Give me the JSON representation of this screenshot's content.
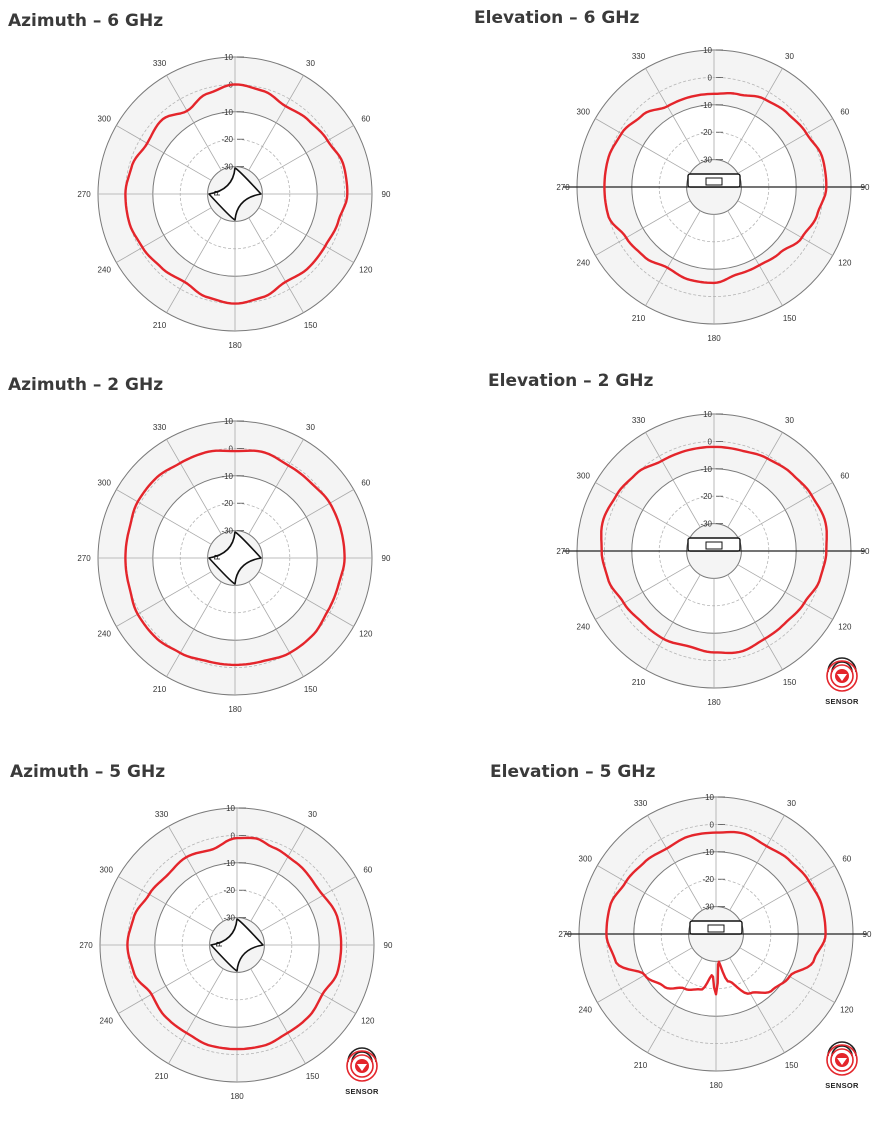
{
  "chart_data": [
    {
      "type": "polar",
      "title": "Azimuth – 6 GHz",
      "plane": "azimuth",
      "angle_ticks": [
        "30",
        "60",
        "90",
        "120",
        "150",
        "180",
        "210",
        "240",
        "270",
        "300",
        "330"
      ],
      "radial_ticks": [
        "10",
        "0",
        "-10",
        "-20",
        "-30"
      ],
      "rlim": [
        -40,
        10
      ],
      "device_label": "R",
      "series": [
        {
          "color": "#e4252b",
          "points": [
            [
              0,
              0
            ],
            [
              15,
              -1
            ],
            [
              30,
              -3
            ],
            [
              45,
              -2
            ],
            [
              60,
              -1
            ],
            [
              75,
              1
            ],
            [
              90,
              1
            ],
            [
              105,
              -1
            ],
            [
              120,
              -2
            ],
            [
              135,
              -2
            ],
            [
              150,
              -3
            ],
            [
              165,
              -1
            ],
            [
              180,
              0
            ],
            [
              195,
              -1
            ],
            [
              210,
              -3
            ],
            [
              225,
              -2
            ],
            [
              240,
              -1
            ],
            [
              255,
              0
            ],
            [
              270,
              0
            ],
            [
              285,
              -1
            ],
            [
              300,
              -3
            ],
            [
              315,
              -2
            ],
            [
              330,
              -5
            ],
            [
              345,
              -2
            ]
          ]
        }
      ]
    },
    {
      "type": "polar",
      "title": "Elevation – 6 GHz",
      "plane": "elevation",
      "angle_ticks": [
        "30",
        "60",
        "90",
        "120",
        "150",
        "180",
        "210",
        "240",
        "270",
        "300",
        "330"
      ],
      "radial_ticks": [
        "10",
        "0",
        "-10",
        "-20",
        "-30"
      ],
      "rlim": [
        -40,
        10
      ],
      "series": [
        {
          "color": "#e4252b",
          "points": [
            [
              0,
              -6
            ],
            [
              15,
              -5
            ],
            [
              30,
              -3
            ],
            [
              45,
              -2
            ],
            [
              60,
              -1
            ],
            [
              75,
              1
            ],
            [
              90,
              1
            ],
            [
              105,
              -1
            ],
            [
              120,
              -3
            ],
            [
              135,
              -6
            ],
            [
              150,
              -7
            ],
            [
              165,
              -7
            ],
            [
              180,
              -5
            ],
            [
              195,
              -5
            ],
            [
              210,
              -6
            ],
            [
              225,
              -4
            ],
            [
              240,
              -3
            ],
            [
              255,
              0
            ],
            [
              270,
              0
            ],
            [
              285,
              0
            ],
            [
              300,
              -1
            ],
            [
              315,
              -3
            ],
            [
              330,
              -6
            ],
            [
              345,
              -6
            ]
          ]
        }
      ]
    },
    {
      "type": "polar",
      "title": "Azimuth – 2 GHz",
      "plane": "azimuth",
      "angle_ticks": [
        "30",
        "60",
        "90",
        "120",
        "150",
        "180",
        "210",
        "240",
        "270",
        "300",
        "330"
      ],
      "radial_ticks": [
        "10",
        "0",
        "-10",
        "-20",
        "-30"
      ],
      "rlim": [
        -40,
        10
      ],
      "device_label": "R",
      "series": [
        {
          "color": "#e4252b",
          "points": [
            [
              0,
              -1
            ],
            [
              15,
              0
            ],
            [
              30,
              -1
            ],
            [
              45,
              -1
            ],
            [
              60,
              0
            ],
            [
              75,
              0
            ],
            [
              90,
              0
            ],
            [
              105,
              -1
            ],
            [
              120,
              -1
            ],
            [
              135,
              0
            ],
            [
              150,
              0
            ],
            [
              165,
              -1
            ],
            [
              180,
              -1
            ],
            [
              195,
              -1
            ],
            [
              210,
              0
            ],
            [
              225,
              1
            ],
            [
              240,
              1
            ],
            [
              255,
              0
            ],
            [
              270,
              0
            ],
            [
              285,
              0
            ],
            [
              300,
              1
            ],
            [
              315,
              1
            ],
            [
              330,
              0
            ],
            [
              345,
              0
            ]
          ]
        }
      ]
    },
    {
      "type": "polar",
      "title": "Elevation – 2 GHz",
      "plane": "elevation",
      "angle_ticks": [
        "30",
        "60",
        "90",
        "120",
        "150",
        "180",
        "210",
        "240",
        "270",
        "300",
        "330"
      ],
      "radial_ticks": [
        "10",
        "0",
        "-10",
        "-20",
        "-30"
      ],
      "rlim": [
        -40,
        10
      ],
      "sensor_label": "SENSOR",
      "series": [
        {
          "color": "#e4252b",
          "points": [
            [
              0,
              -2
            ],
            [
              15,
              -2
            ],
            [
              30,
              -1
            ],
            [
              45,
              0
            ],
            [
              60,
              1
            ],
            [
              75,
              2
            ],
            [
              90,
              1
            ],
            [
              105,
              0
            ],
            [
              120,
              -2
            ],
            [
              135,
              -3
            ],
            [
              150,
              -3
            ],
            [
              165,
              -2
            ],
            [
              180,
              -3
            ],
            [
              195,
              -4
            ],
            [
              210,
              -3
            ],
            [
              225,
              -3
            ],
            [
              240,
              -2
            ],
            [
              255,
              0
            ],
            [
              270,
              1
            ],
            [
              285,
              2
            ],
            [
              300,
              1
            ],
            [
              315,
              0
            ],
            [
              330,
              -2
            ],
            [
              345,
              -2
            ]
          ]
        }
      ]
    },
    {
      "type": "polar",
      "title": "Azimuth – 5 GHz",
      "plane": "azimuth",
      "angle_ticks": [
        "30",
        "60",
        "90",
        "120",
        "150",
        "180",
        "210",
        "240",
        "270",
        "300",
        "330"
      ],
      "radial_ticks": [
        "10",
        "0",
        "-10",
        "-20",
        "-30"
      ],
      "rlim": [
        -40,
        10
      ],
      "device_label": "R",
      "sensor_label": "SENSOR",
      "series": [
        {
          "color": "#e4252b",
          "points": [
            [
              0,
              -1
            ],
            [
              10,
              -0.5
            ],
            [
              20,
              -2
            ],
            [
              35,
              -3
            ],
            [
              55,
              -4
            ],
            [
              75,
              -2
            ],
            [
              90,
              -2
            ],
            [
              105,
              -2
            ],
            [
              120,
              -4
            ],
            [
              135,
              -3
            ],
            [
              150,
              -3
            ],
            [
              165,
              -2
            ],
            [
              180,
              -2
            ],
            [
              195,
              -2
            ],
            [
              210,
              -3
            ],
            [
              225,
              -3
            ],
            [
              240,
              -4
            ],
            [
              255,
              -1
            ],
            [
              270,
              0
            ],
            [
              285,
              -1
            ],
            [
              300,
              -3
            ],
            [
              315,
              -4
            ],
            [
              330,
              -3
            ],
            [
              345,
              -4
            ]
          ]
        }
      ]
    },
    {
      "type": "polar",
      "title": "Elevation – 5 GHz",
      "plane": "elevation",
      "angle_ticks": [
        "30",
        "60",
        "90",
        "120",
        "150",
        "180",
        "210",
        "240",
        "270",
        "300",
        "330"
      ],
      "radial_ticks": [
        "10",
        "0",
        "-10",
        "-20",
        "-30"
      ],
      "rlim": [
        -40,
        10
      ],
      "sensor_label": "SENSOR",
      "series": [
        {
          "color": "#e4252b",
          "points": [
            [
              0,
              -3
            ],
            [
              15,
              -2
            ],
            [
              30,
              -3
            ],
            [
              45,
              -2
            ],
            [
              60,
              -1
            ],
            [
              75,
              0
            ],
            [
              90,
              0
            ],
            [
              105,
              -3
            ],
            [
              120,
              -9
            ],
            [
              135,
              -11
            ],
            [
              150,
              -15
            ],
            [
              165,
              -22
            ],
            [
              175,
              -30
            ],
            [
              180,
              -18
            ],
            [
              185,
              -25
            ],
            [
              195,
              -19
            ],
            [
              210,
              -17
            ],
            [
              225,
              -13
            ],
            [
              240,
              -10
            ],
            [
              255,
              -2
            ],
            [
              270,
              0
            ],
            [
              285,
              0
            ],
            [
              300,
              -2
            ],
            [
              315,
              -3
            ],
            [
              330,
              -4
            ],
            [
              345,
              -3
            ]
          ]
        }
      ]
    }
  ]
}
